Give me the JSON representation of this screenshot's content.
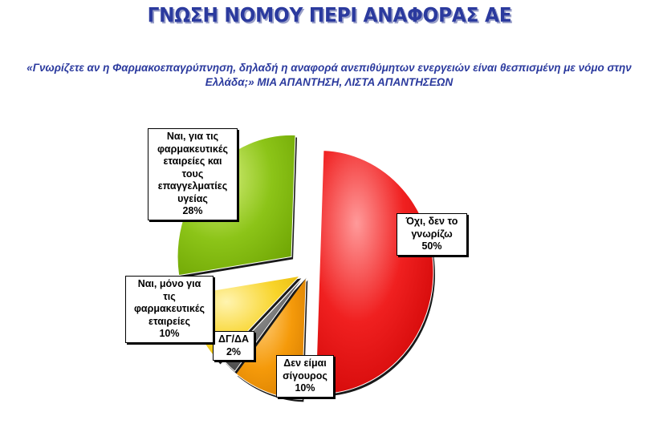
{
  "header": {
    "title": "ΓΝΩΣΗ ΝΟΜΟΥ ΠΕΡΙ ΑΝΑΦΟΡΑΣ ΑΕ",
    "question_text": "«Γνωρίζετε αν η Φαρμακοεπαγρύπνηση, δηλαδή η αναφορά ανεπιθύμητων ενεργειών είναι θεσπισμένη με νόμο στην Ελλάδα;»",
    "question_note": "ΜΙΑ ΑΠΑΝΤΗΣΗ, ΛΙΣΤΑ ΑΠΑΝΤΗΣΕΩΝ"
  },
  "chart_data": {
    "type": "pie",
    "title": "",
    "slices": [
      {
        "label": "Όχι, δεν το γνωρίζω",
        "value": 50,
        "percent_label": "50%",
        "color": "#ee1a1a"
      },
      {
        "label": "Δεν είμαι σίγουρος",
        "value": 10,
        "percent_label": "10%",
        "color": "#f59a0a"
      },
      {
        "label": "ΔΓ/ΔΑ",
        "value": 2,
        "percent_label": "2%",
        "color": "#5a5a5a"
      },
      {
        "label": "Ναι, μόνο για τις φαρμακευτικές εταιρείες",
        "value": 10,
        "percent_label": "10%",
        "color": "#f8d42a"
      },
      {
        "label": "Ναι, για τις φαρμακευτικές εταιρείες και τους επαγγελματίες υγείας",
        "value": 28,
        "percent_label": "28%",
        "color": "#8cc418"
      }
    ],
    "labels": {
      "no": {
        "lines": [
          "Όχι, δεν το",
          "γνωρίζω"
        ],
        "pct": "50%"
      },
      "not_sure": {
        "lines": [
          "Δεν είμαι",
          "σίγουρος"
        ],
        "pct": "10%"
      },
      "dk": {
        "lines": [
          "ΔΓ/ΔΑ"
        ],
        "pct": "2%"
      },
      "yes_pharma": {
        "lines": [
          "Ναι, μόνο για",
          "τις",
          "φαρμακευτικές",
          "εταιρείες"
        ],
        "pct": "10%"
      },
      "yes_both": {
        "lines": [
          "Ναι, για τις",
          "φαρμακευτικές",
          "εταιρείες και",
          "τους",
          "επαγγελματίες",
          "υγείας"
        ],
        "pct": "28%"
      }
    }
  }
}
